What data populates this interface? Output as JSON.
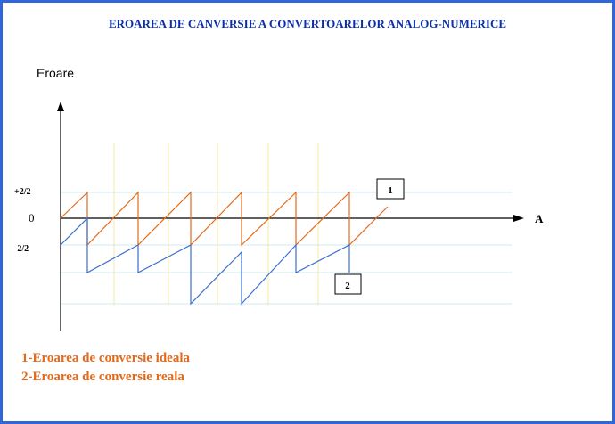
{
  "title": "EROAREA DE CANVERSIE A CONVERTOARELOR ANALOG-NUMERICE",
  "axes": {
    "y_label": "Eroare",
    "x_label": "A",
    "tick_plus": "+2/2",
    "tick_zero": "0",
    "tick_minus": "-2/2"
  },
  "callouts": {
    "ideal": "1",
    "real": "2"
  },
  "legend": {
    "ideal": "1-Eroarea de conversie ideala",
    "real": "2-Eroarea de conversie reala"
  },
  "colors": {
    "frame": "#2f66d9",
    "title": "#0b2fa8",
    "ideal_series": "#e46a1b",
    "real_series": "#3a6fd0",
    "guide_vertical": "#f4eaa0",
    "guide_horizontal": "#cfeaf2",
    "axis": "#000000"
  }
}
